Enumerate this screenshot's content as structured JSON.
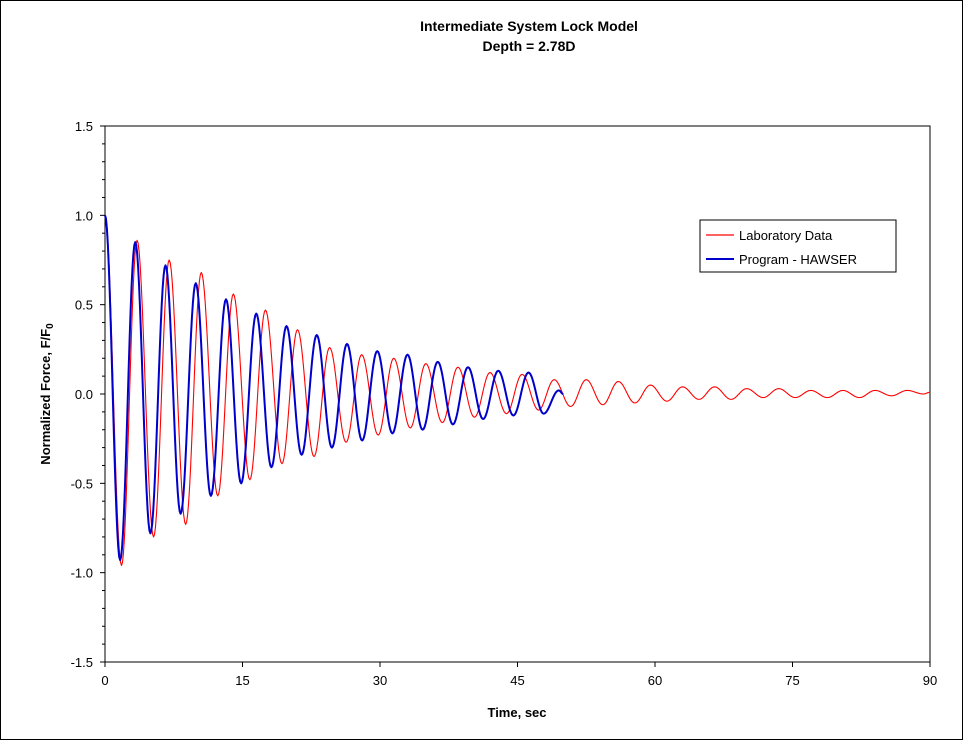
{
  "chart_data": {
    "type": "line",
    "title": "Intermediate System Lock Model",
    "subtitle": "Depth = 2.78D",
    "xlabel": "Time, sec",
    "ylabel": "Normalized Force, F/F",
    "ylabel_subscript": "0",
    "xlim": [
      0,
      90
    ],
    "ylim": [
      -1.5,
      1.5
    ],
    "xticks": [
      "0",
      "15",
      "30",
      "45",
      "60",
      "75",
      "90"
    ],
    "yticks": [
      "1.5",
      "1.0",
      "0.5",
      "0.0",
      "-0.5",
      "-1.0",
      "-1.5"
    ],
    "xtick_values": [
      0,
      15,
      30,
      45,
      60,
      75,
      90
    ],
    "ytick_values": [
      1.5,
      1.0,
      0.5,
      0.0,
      -0.5,
      -1.0,
      -1.5
    ],
    "grid": false,
    "legend_position": "right",
    "series": [
      {
        "name": "Laboratory Data",
        "color": "#ff0000",
        "x": [
          0,
          1.8,
          3.5,
          5.3,
          7.0,
          8.8,
          10.5,
          12.3,
          14.0,
          15.8,
          17.5,
          19.3,
          21.0,
          22.8,
          24.5,
          26.3,
          28.0,
          29.8,
          31.5,
          33.3,
          35.0,
          36.8,
          38.5,
          40.3,
          42.0,
          43.8,
          45.5,
          47.3,
          49.0,
          50.8,
          52.5,
          54.3,
          56.0,
          57.8,
          59.5,
          61.3,
          63.0,
          64.8,
          66.5,
          68.3,
          70.0,
          71.8,
          73.5,
          75.3,
          77.0,
          78.8,
          80.5,
          82.3,
          84.0,
          85.8,
          87.5,
          89.3,
          90.0
        ],
        "y": [
          1.0,
          -0.96,
          0.86,
          -0.8,
          0.75,
          -0.73,
          0.68,
          -0.57,
          0.56,
          -0.48,
          0.47,
          -0.39,
          0.36,
          -0.35,
          0.26,
          -0.27,
          0.22,
          -0.23,
          0.2,
          -0.19,
          0.17,
          -0.16,
          0.15,
          -0.13,
          0.12,
          -0.11,
          0.11,
          -0.09,
          0.08,
          -0.07,
          0.08,
          -0.06,
          0.07,
          -0.05,
          0.05,
          -0.04,
          0.04,
          -0.03,
          0.04,
          -0.03,
          0.03,
          -0.02,
          0.03,
          -0.02,
          0.02,
          -0.02,
          0.02,
          -0.02,
          0.02,
          -0.01,
          0.02,
          0.0,
          0.01
        ]
      },
      {
        "name": "Program - HAWSER",
        "color": "#0000cc",
        "x": [
          0,
          1.65,
          3.3,
          4.95,
          6.6,
          8.25,
          9.9,
          11.55,
          13.2,
          14.85,
          16.5,
          18.15,
          19.8,
          21.45,
          23.1,
          24.75,
          26.4,
          28.05,
          29.7,
          31.35,
          33.0,
          34.65,
          36.3,
          37.95,
          39.6,
          41.25,
          42.9,
          44.55,
          46.2,
          47.85,
          49.5,
          50.0
        ],
        "y": [
          1.0,
          -0.93,
          0.85,
          -0.78,
          0.72,
          -0.67,
          0.62,
          -0.57,
          0.53,
          -0.5,
          0.45,
          -0.41,
          0.38,
          -0.34,
          0.33,
          -0.3,
          0.28,
          -0.26,
          0.24,
          -0.22,
          0.22,
          -0.2,
          0.18,
          -0.17,
          0.15,
          -0.14,
          0.13,
          -0.12,
          0.12,
          -0.11,
          0.02,
          0.0
        ]
      }
    ]
  }
}
